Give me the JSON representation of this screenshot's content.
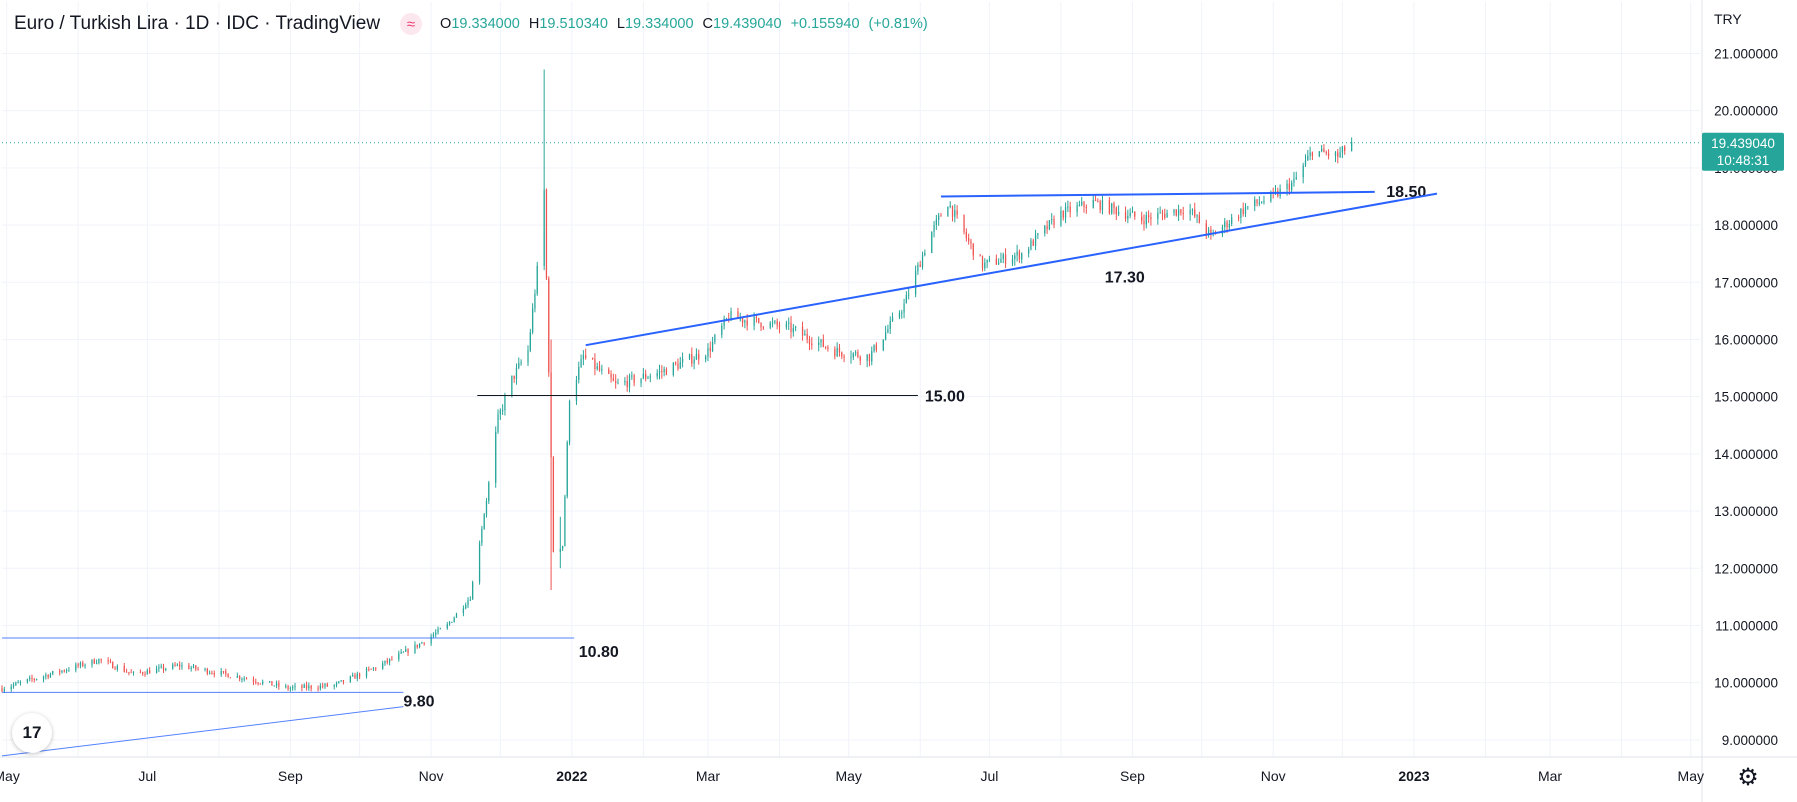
{
  "header": {
    "title": "Euro / Turkish Lira · 1D · IDC · TradingView",
    "ohlc": [
      {
        "label": "O",
        "value": "19.334000"
      },
      {
        "label": "H",
        "value": "19.510340"
      },
      {
        "label": "L",
        "value": "19.334000"
      },
      {
        "label": "C",
        "value": "19.439040"
      }
    ],
    "change": "+0.155940",
    "change_pct": "(+0.81%)"
  },
  "currency_label": "TRY",
  "last_price": {
    "value": "19.439040",
    "countdown": "10:48:31"
  },
  "logo_text": "17",
  "icons": {
    "indicator": "wave-indicator-icon",
    "settings": "gear-icon",
    "logo": "tradingview-logo-icon"
  },
  "colors": {
    "up": "#26a69a",
    "down": "#ef5350",
    "trendline": "#2962ff",
    "level": "#131722",
    "price_tag": "#26a69a"
  },
  "chart_data": {
    "type": "candlestick",
    "x_axis_labels": [
      "May",
      "Jul",
      "Sep",
      "Nov",
      "2022",
      "Mar",
      "May",
      "Jul",
      "Sep",
      "Nov",
      "2023",
      "Mar",
      "May"
    ],
    "y_axis_labels": [
      "9.000000",
      "10.000000",
      "11.000000",
      "12.000000",
      "13.000000",
      "14.000000",
      "15.000000",
      "16.000000",
      "17.000000",
      "18.000000",
      "19.000000",
      "20.000000",
      "21.000000"
    ],
    "ylim": [
      8.7,
      21.9
    ],
    "xlim": [
      "2021-04-29",
      "2023-05-05"
    ],
    "grid": true,
    "close_path": [
      [
        "2021-04-29",
        9.9
      ],
      [
        "2021-05-20",
        10.15
      ],
      [
        "2021-06-10",
        10.4
      ],
      [
        "2021-06-25",
        10.15
      ],
      [
        "2021-07-15",
        10.3
      ],
      [
        "2021-08-10",
        10.1
      ],
      [
        "2021-08-31",
        9.9
      ],
      [
        "2021-09-20",
        9.95
      ],
      [
        "2021-10-10",
        10.3
      ],
      [
        "2021-10-26",
        10.65
      ],
      [
        "2021-11-08",
        11.0
      ],
      [
        "2021-11-18",
        11.5
      ],
      [
        "2021-11-25",
        13.2
      ],
      [
        "2021-11-30",
        14.6
      ],
      [
        "2021-12-06",
        15.3
      ],
      [
        "2021-12-13",
        15.8
      ],
      [
        "2021-12-17",
        17.2
      ],
      [
        "2021-12-20",
        18.6
      ],
      [
        "2021-12-22",
        15.5
      ],
      [
        "2021-12-24",
        12.3
      ],
      [
        "2021-12-28",
        12.4
      ],
      [
        "2021-12-31",
        15.0
      ],
      [
        "2022-01-06",
        15.7
      ],
      [
        "2022-01-20",
        15.2
      ],
      [
        "2022-02-10",
        15.45
      ],
      [
        "2022-03-01",
        15.8
      ],
      [
        "2022-03-10",
        16.4
      ],
      [
        "2022-04-05",
        16.2
      ],
      [
        "2022-04-25",
        15.8
      ],
      [
        "2022-05-10",
        15.7
      ],
      [
        "2022-05-25",
        16.6
      ],
      [
        "2022-06-05",
        17.8
      ],
      [
        "2022-06-13",
        18.4
      ],
      [
        "2022-06-22",
        17.7
      ],
      [
        "2022-06-28",
        17.3
      ],
      [
        "2022-07-15",
        17.5
      ],
      [
        "2022-08-01",
        18.2
      ],
      [
        "2022-08-15",
        18.4
      ],
      [
        "2022-09-05",
        18.1
      ],
      [
        "2022-09-25",
        18.3
      ],
      [
        "2022-10-05",
        17.8
      ],
      [
        "2022-10-20",
        18.3
      ],
      [
        "2022-11-01",
        18.5
      ],
      [
        "2022-11-10",
        18.75
      ],
      [
        "2022-11-18",
        19.3
      ],
      [
        "2022-11-29",
        19.2
      ],
      [
        "2022-12-05",
        19.44
      ]
    ],
    "spikes": [
      {
        "date": "2021-12-20",
        "high": 20.72,
        "low": 17.4
      },
      {
        "date": "2021-12-23",
        "high": 16.0,
        "low": 11.62
      },
      {
        "date": "2021-12-27",
        "high": 12.9,
        "low": 12.0
      }
    ],
    "annotations": [
      {
        "text": "18.50",
        "kind": "trendline",
        "x1": "2022-06-10",
        "y1": 18.5,
        "x2": "2022-12-15",
        "y2": 18.58,
        "label_at": "2022-12-20"
      },
      {
        "text": "17.30",
        "kind": "trendline",
        "x1": "2022-01-07",
        "y1": 15.9,
        "x2": "2023-01-11",
        "y2": 18.55,
        "label_at": "2022-08-20"
      },
      {
        "text": "15.00",
        "kind": "level",
        "x1": "2021-11-21",
        "y1": 15.02,
        "x2": "2022-05-31",
        "y2": 15.02,
        "label_at": "2022-06-03"
      },
      {
        "text": "10.80",
        "kind": "trendline",
        "x1": "2021-04-29",
        "y1": 10.78,
        "x2": "2022-01-02",
        "y2": 10.78,
        "label_at": "2022-01-04"
      },
      {
        "text": "9.80",
        "kind": "trendline",
        "x1": "2021-04-29",
        "y1": 9.83,
        "x2": "2021-10-20",
        "y2": 9.83,
        "label_at": "2021-10-20"
      },
      {
        "text": "",
        "kind": "trendline",
        "x1": "2021-04-29",
        "y1": 8.72,
        "x2": "2021-10-20",
        "y2": 9.58
      }
    ]
  }
}
